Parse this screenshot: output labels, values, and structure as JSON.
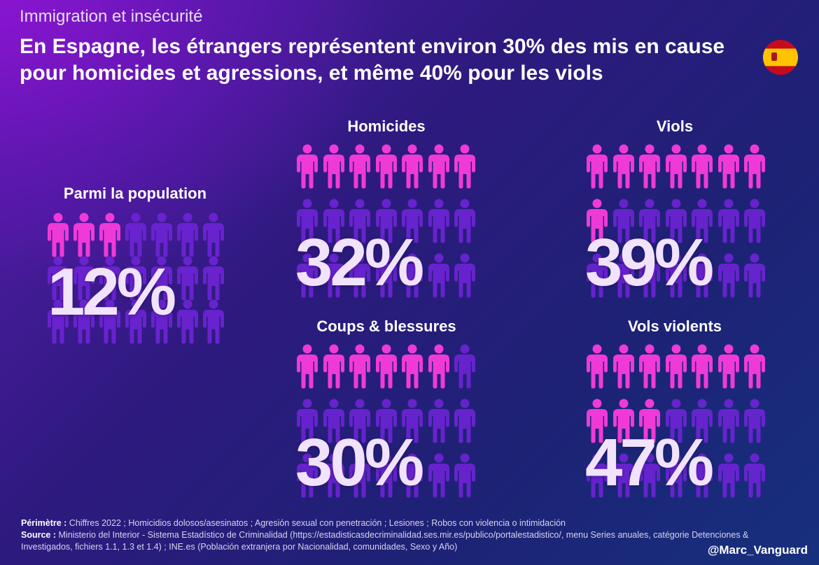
{
  "header": {
    "kicker": "Immigration et insécurité",
    "title": "En Espagne, les étrangers représentent environ 30% des mis en cause pour homicides et agressions, et même 40% pour les viols"
  },
  "colors": {
    "highlight": "#f03ad8",
    "base": "#6e24d6",
    "pct_text": "#f1e3fb"
  },
  "chart_data": [
    {
      "type": "pictogram",
      "title": "Parmi la population",
      "value_label": "12%",
      "value": 12,
      "total_icons": 21,
      "highlighted_icons": 3
    },
    {
      "type": "pictogram",
      "title": "Homicides",
      "value_label": "32%",
      "value": 32,
      "total_icons": 21,
      "highlighted_icons": 7
    },
    {
      "type": "pictogram",
      "title": "Viols",
      "value_label": "39%",
      "value": 39,
      "total_icons": 21,
      "highlighted_icons": 8
    },
    {
      "type": "pictogram",
      "title": "Coups & blessures",
      "value_label": "30%",
      "value": 30,
      "total_icons": 21,
      "highlighted_icons": 6
    },
    {
      "type": "pictogram",
      "title": "Vols violents",
      "value_label": "47%",
      "value": 47,
      "total_icons": 21,
      "highlighted_icons": 10
    }
  ],
  "footer": {
    "perimetre_label": "Périmètre :",
    "perimetre_text": "Chiffres 2022 ; Homicidios dolosos/asesinatos ; Agresión sexual con penetración ; Lesiones ; Robos con violencia o intimidación",
    "source_label": "Source :",
    "source_text": "Ministerio del Interior - Sistema Estadístico de Criminalidad (https://estadisticasdecriminalidad.ses.mir.es/publico/portalestadistico/, menu Series anuales, catégorie Detenciones & Investigados, fichiers 1.1, 1.3 et 1.4) ; INE.es (Población extranjera por Nacionalidad, comunidades, Sexo y Año)",
    "handle": "@Marc_Vanguard"
  }
}
